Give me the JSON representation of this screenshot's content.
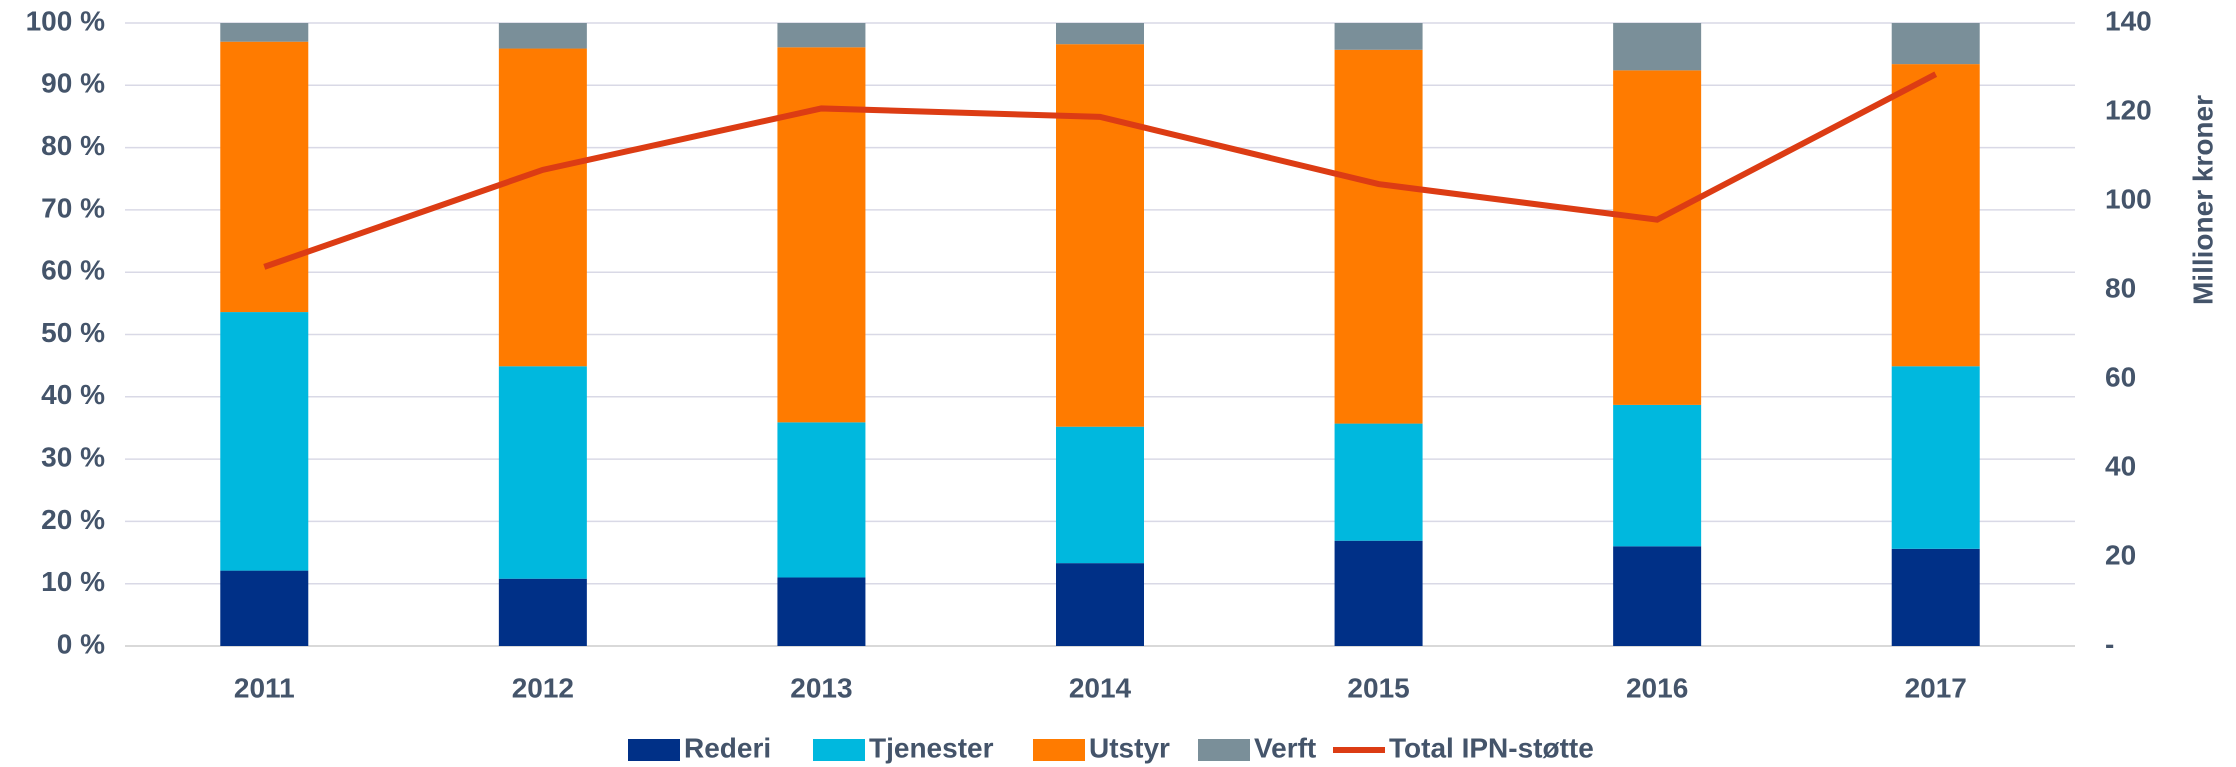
{
  "chart_data": {
    "type": "bar",
    "stacked": true,
    "categories": [
      "2011",
      "2012",
      "2013",
      "2014",
      "2015",
      "2016",
      "2017"
    ],
    "series": [
      {
        "name": "Rederi",
        "color": "#003087",
        "values": [
          12.1,
          10.8,
          11,
          13.3,
          16.9,
          16,
          15.6
        ]
      },
      {
        "name": "Tjenester",
        "color": "#00b8de",
        "values": [
          41.5,
          34.1,
          24.9,
          21.9,
          18.8,
          22.7,
          29.3
        ]
      },
      {
        "name": "Utstyr",
        "color": "#ff7b00",
        "values": [
          43.4,
          51,
          60.2,
          61.4,
          60,
          53.7,
          48.5
        ]
      },
      {
        "name": "Verft",
        "color": "#7a8f99",
        "values": [
          3,
          4.1,
          3.9,
          3.4,
          4.3,
          7.6,
          6.6
        ]
      },
      {
        "name": "Total IPN-støtte",
        "color": "#dc3c14",
        "type": "line",
        "axis": "y2",
        "values": [
          85.2,
          107,
          120.8,
          118.9,
          103.8,
          95.8,
          128.5
        ]
      }
    ],
    "ylim": [
      0,
      100
    ],
    "yticks": [
      {
        "value": 0,
        "label": "0 %"
      },
      {
        "value": 10,
        "label": "10 %"
      },
      {
        "value": 20,
        "label": "20 %"
      },
      {
        "value": 30,
        "label": "30 %"
      },
      {
        "value": 40,
        "label": "40 %"
      },
      {
        "value": 50,
        "label": "50 %"
      },
      {
        "value": 60,
        "label": "60 %"
      },
      {
        "value": 70,
        "label": "70 %"
      },
      {
        "value": 80,
        "label": "80 %"
      },
      {
        "value": 90,
        "label": "90 %"
      },
      {
        "value": 100,
        "label": "100 %"
      }
    ],
    "y2label": "Millioner kroner",
    "y2lim": [
      0,
      140
    ],
    "y2ticks": [
      {
        "value": 0,
        "label": "-"
      },
      20,
      40,
      60,
      80,
      100,
      120,
      140
    ],
    "grid": true,
    "legend": "bottom"
  }
}
